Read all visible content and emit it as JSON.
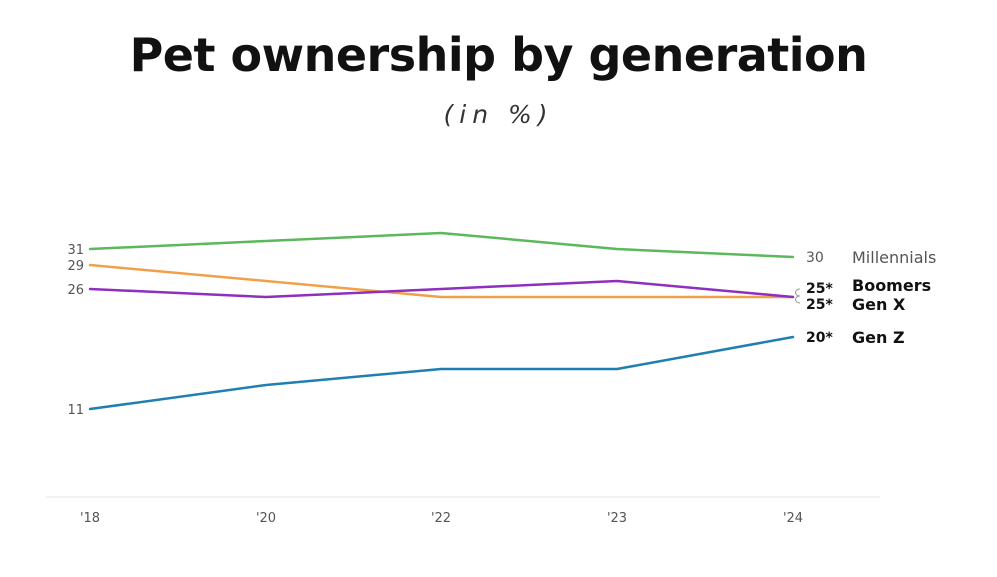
{
  "chart_data": {
    "type": "line",
    "title": "Pet ownership by generation",
    "subtitle": "(in %)",
    "x": [
      "'18",
      "'20",
      "'22",
      "'23",
      "'24"
    ],
    "ylim": [
      5,
      36
    ],
    "grid": false,
    "legend": "right",
    "series": [
      {
        "name": "Millennials",
        "color": "#5cb85c",
        "values": [
          31,
          32,
          33,
          31,
          30
        ],
        "start_label": "31",
        "end_label": "30",
        "bold": false,
        "text_color": "#555555"
      },
      {
        "name": "Boomers",
        "color": "#f0a04b",
        "values": [
          29,
          27,
          25,
          25,
          25
        ],
        "start_label": "29",
        "end_label": "25*",
        "bold": true,
        "text_color": "#111111"
      },
      {
        "name": "Gen X",
        "color": "#8e2fbf",
        "values": [
          26,
          25,
          26,
          27,
          25
        ],
        "start_label": "26",
        "end_label": "25*",
        "bold": true,
        "text_color": "#111111"
      },
      {
        "name": "Gen Z",
        "color": "#1f7fb0",
        "values": [
          11,
          14,
          16,
          16,
          20
        ],
        "start_label": "11",
        "end_label": "20*",
        "bold": true,
        "text_color": "#111111"
      }
    ]
  }
}
